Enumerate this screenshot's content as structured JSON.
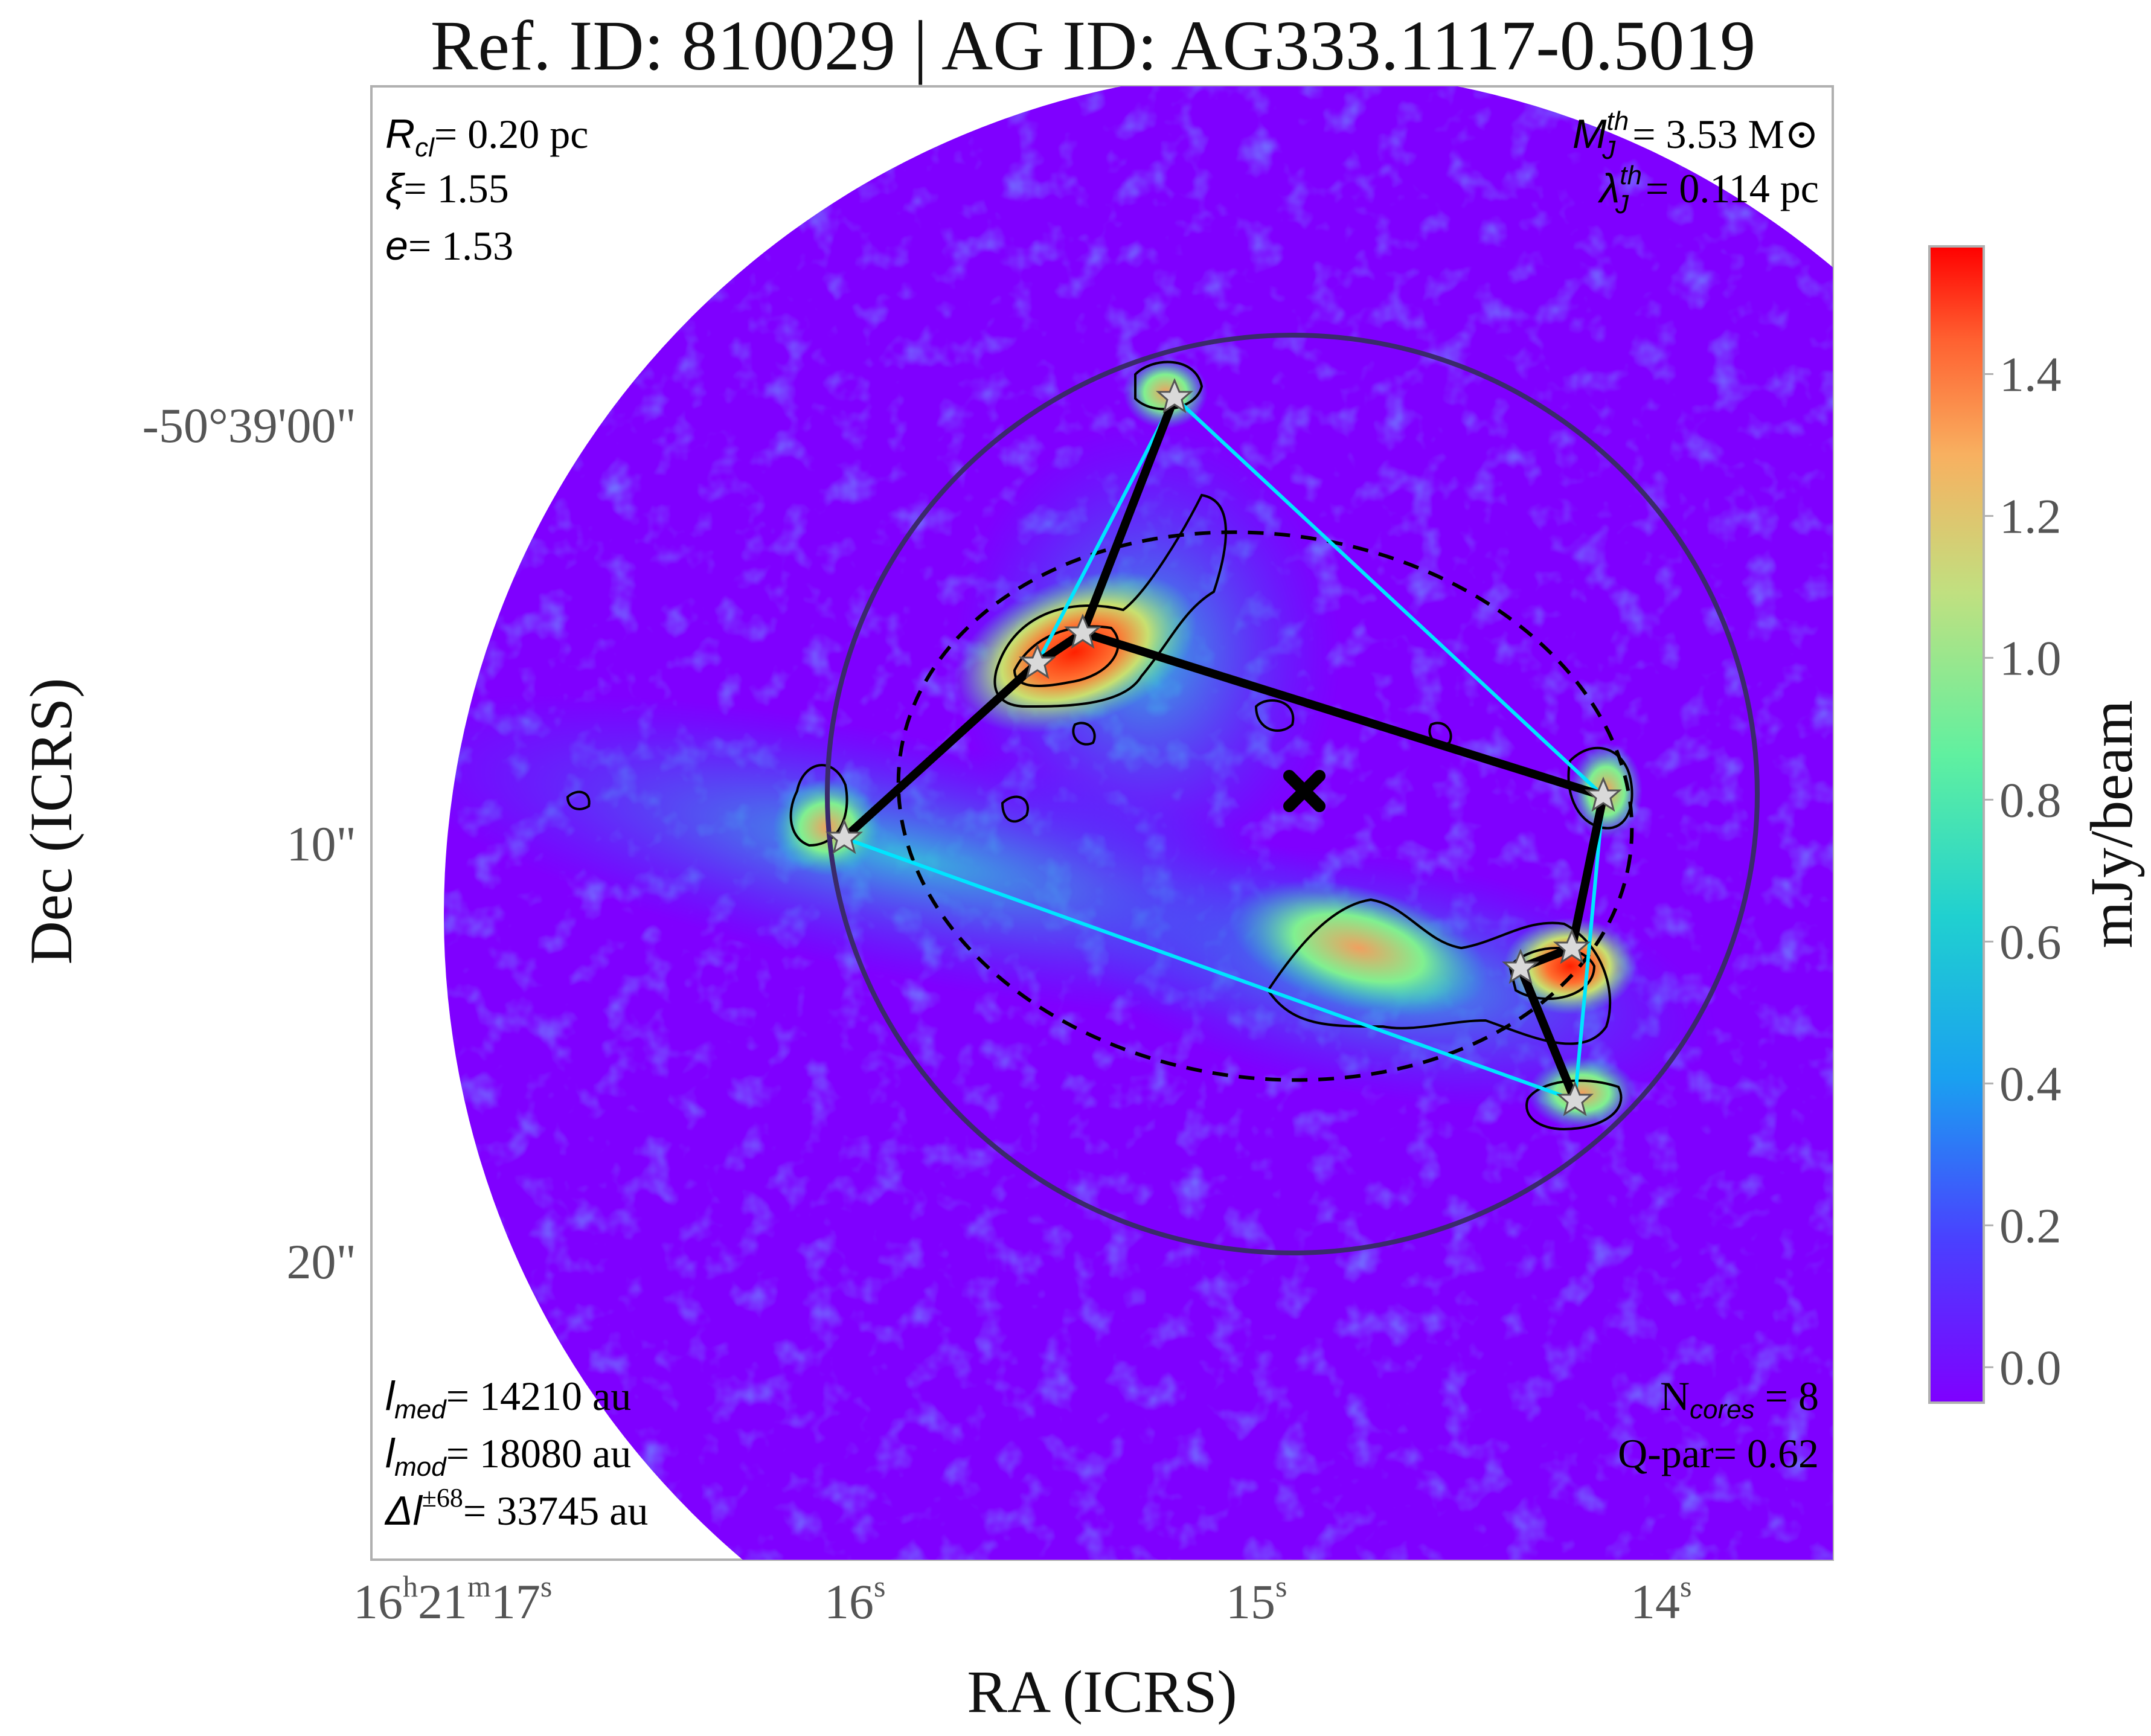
{
  "figure": {
    "title": "Ref. ID: 810029 | AG ID: AG333.1117-0.5019",
    "xlabel": "RA (ICRS)",
    "ylabel": "Dec (ICRS)",
    "dec_ticks": [
      "-50°39'00\"",
      "10\"",
      "20\""
    ],
    "ra_ticks": [
      {
        "base": "16",
        "sup1": "h",
        "mid": "21",
        "sup2": "m",
        "last": "17",
        "sup3": "s"
      },
      {
        "base": "16",
        "sup3": "s"
      },
      {
        "base": "15",
        "sup3": "s"
      },
      {
        "base": "14",
        "sup3": "s"
      }
    ]
  },
  "annotations": {
    "top_left": [
      {
        "sym": "R",
        "sub": "cl",
        "sup": "",
        "rest": "= 0.20 pc"
      },
      {
        "sym": "ξ",
        "sub": "",
        "sup": "",
        "rest": "= 1.55"
      },
      {
        "sym": "e",
        "sub": "",
        "sup": "",
        "rest": "= 1.53"
      }
    ],
    "top_right": [
      {
        "sym": "M",
        "sub": "J",
        "sup": "th",
        "rest": "= 3.53 M⊙"
      },
      {
        "sym": "λ",
        "sub": "J",
        "sup": "th",
        "rest": "= 0.114 pc"
      }
    ],
    "bottom_left": [
      {
        "sym": "l",
        "sub": "med",
        "sup": "",
        "rest": "= 14210 au"
      },
      {
        "sym": "l",
        "sub": "mod",
        "sup": "",
        "rest": "= 18080 au"
      },
      {
        "sym": "Δl",
        "sub": "",
        "sup": "±68",
        "rest": "= 33745 au"
      }
    ],
    "bottom_right": [
      {
        "pre": "N",
        "sub": "cores",
        "rest": " = 8"
      },
      {
        "pre": "Q-par",
        "sub": "",
        "rest": "= 0.62"
      }
    ]
  },
  "colorbar": {
    "label": "mJy/beam",
    "ticks": [
      "0.0",
      "0.2",
      "0.4",
      "0.6",
      "0.8",
      "1.0",
      "1.2",
      "1.4"
    ],
    "tick_values": [
      0.0,
      0.2,
      0.4,
      0.6,
      0.8,
      1.0,
      1.2,
      1.4
    ],
    "vmin": -0.05,
    "vmax": 1.58,
    "colors": [
      "#7f00ff",
      "#4060ff",
      "#00c0e0",
      "#40e0a0",
      "#c0e080",
      "#f0b060",
      "#ff6030",
      "#ff0000"
    ]
  },
  "colors": {
    "mst_edges": "#000000",
    "hull_edges": "#00e5ff",
    "outer_circle": "#3a2a6a",
    "ellipse": "#000000",
    "cores": "#d9d9d9"
  }
}
